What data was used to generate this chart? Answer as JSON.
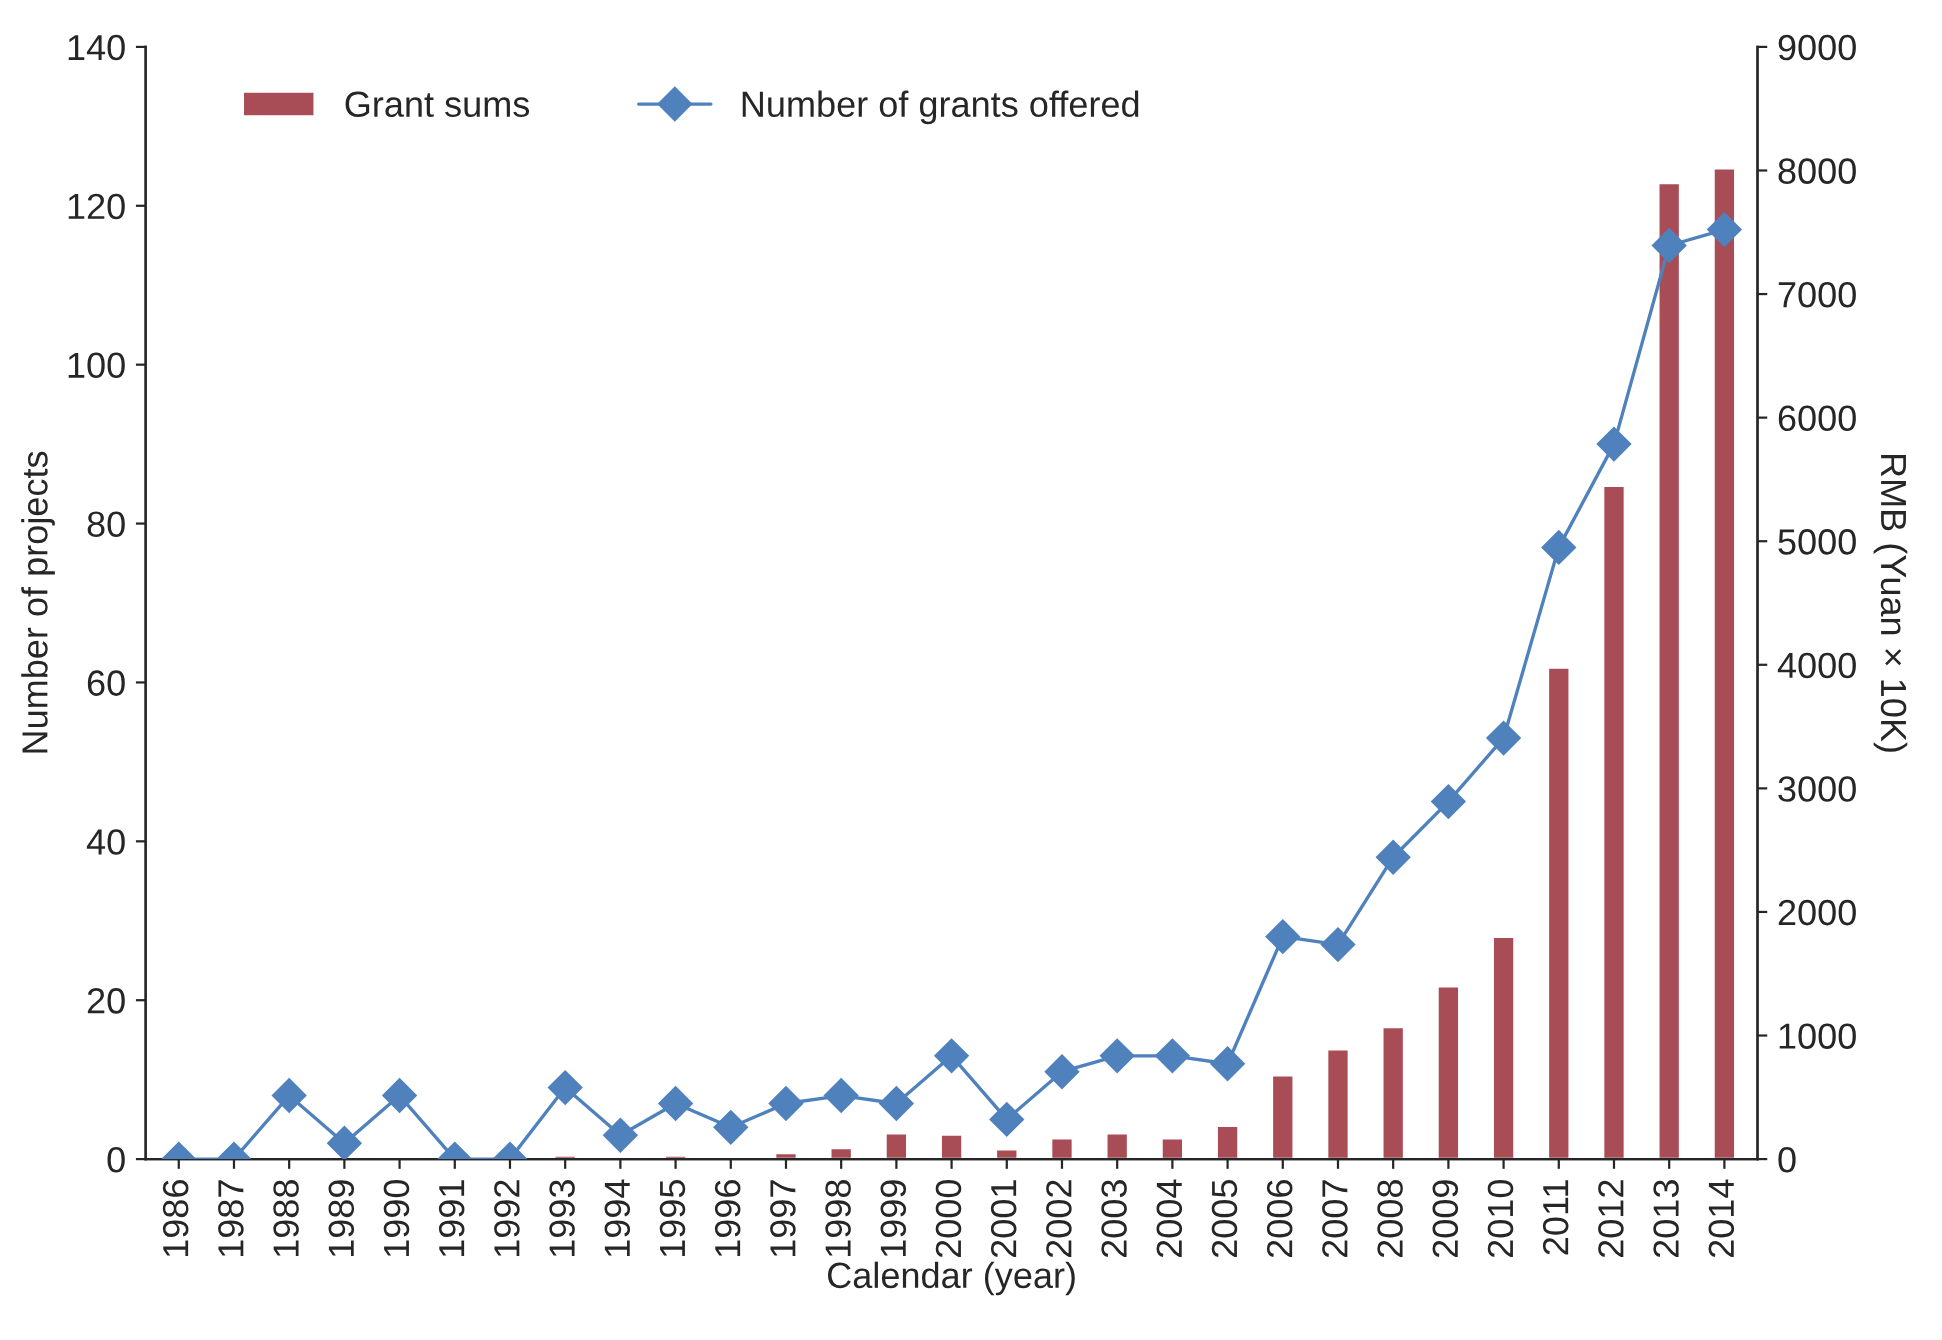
{
  "chart_data": {
    "type": "bar",
    "xlabel": "Calendar (year)",
    "ylabel": "Number of projects",
    "y2label": "RMB (Yuan × 10K)",
    "categories": [
      "1986",
      "1987",
      "1988",
      "1989",
      "1990",
      "1991",
      "1992",
      "1993",
      "1994",
      "1995",
      "1996",
      "1997",
      "1998",
      "1999",
      "2000",
      "2001",
      "2002",
      "2003",
      "2004",
      "2005",
      "2006",
      "2007",
      "2008",
      "2009",
      "2010",
      "2011",
      "2012",
      "2013",
      "2014"
    ],
    "series": [
      {
        "name": "Grant sums",
        "axis": "y2",
        "color": "#a84d55",
        "values": [
          null,
          null,
          null,
          null,
          20,
          null,
          null,
          30,
          null,
          30,
          20,
          50,
          90,
          210,
          200,
          80,
          170,
          210,
          170,
          270,
          680,
          890,
          1070,
          1400,
          1800,
          3980,
          5450,
          7900,
          8020
        ]
      },
      {
        "name": "Number of grants offered",
        "type": "line",
        "axis": "y",
        "color": "#4f81bd",
        "marker": "diamond",
        "values": [
          0,
          0,
          8,
          2,
          8,
          0,
          0,
          9,
          3,
          7,
          4,
          7,
          8,
          7,
          13,
          5,
          11,
          13,
          13,
          12,
          28,
          27,
          38,
          45,
          53,
          77,
          90,
          115,
          117
        ]
      }
    ],
    "ylim": [
      0,
      140
    ],
    "yticks": [
      0,
      20,
      40,
      60,
      80,
      100,
      120,
      140
    ],
    "y2lim": [
      0,
      9000
    ],
    "y2ticks": [
      0,
      1000,
      2000,
      3000,
      4000,
      5000,
      6000,
      7000,
      8000,
      9000
    ],
    "legend": "top left",
    "grid": false
  }
}
